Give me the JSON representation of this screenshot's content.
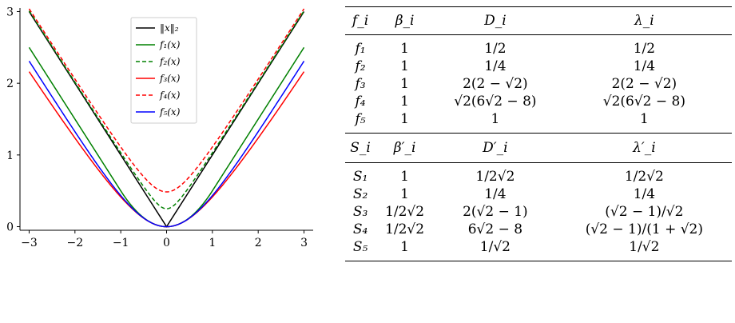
{
  "chart_data": {
    "type": "line",
    "xlim": [
      -3.2,
      3.2
    ],
    "ylim": [
      -0.05,
      3.05
    ],
    "x_ticks": [
      -3,
      -2,
      -1,
      0,
      1,
      2,
      3
    ],
    "y_ticks": [
      0,
      1,
      2,
      3
    ],
    "x_tick_labels": [
      "−3",
      "−2",
      "−1",
      "0",
      "1",
      "2",
      "3"
    ],
    "y_tick_labels": [
      "0",
      "1",
      "2",
      "3"
    ],
    "legend_position": "upper-center",
    "series": [
      {
        "name": "‖x‖₂",
        "color": "#000000",
        "dash": "solid",
        "fn": "abs"
      },
      {
        "name": "f₁(x)",
        "color": "#008000",
        "dash": "solid",
        "fn": "f1"
      },
      {
        "name": "f₂(x)",
        "color": "#008000",
        "dash": "dashed",
        "fn": "f2"
      },
      {
        "name": "f₃(x)",
        "color": "#ff0000",
        "dash": "solid",
        "fn": "f3"
      },
      {
        "name": "f₄(x)",
        "color": "#ff0000",
        "dash": "dashed",
        "fn": "f4"
      },
      {
        "name": "f₅(x)",
        "color": "#0000ff",
        "dash": "solid",
        "fn": "f5"
      }
    ]
  },
  "table": {
    "header1": [
      "f_i",
      "β_i",
      "D_i",
      "λ_i"
    ],
    "rows1": [
      [
        "f₁",
        "1",
        "1/2",
        "1/2"
      ],
      [
        "f₂",
        "1",
        "1/4",
        "1/4"
      ],
      [
        "f₃",
        "1",
        "2(2 − √2)",
        "2(2 − √2)"
      ],
      [
        "f₄",
        "1",
        "√2(6√2 − 8)",
        "√2(6√2 − 8)"
      ],
      [
        "f₅",
        "1",
        "1",
        "1"
      ]
    ],
    "header2": [
      "S_i",
      "β′_i",
      "D′_i",
      "λ′_i"
    ],
    "rows2": [
      [
        "S₁",
        "1",
        "1/2√2",
        "1/2√2"
      ],
      [
        "S₂",
        "1",
        "1/4",
        "1/4"
      ],
      [
        "S₃",
        "1/2√2",
        "2(√2 − 1)",
        "(√2 − 1)/√2"
      ],
      [
        "S₄",
        "1/2√2",
        "6√2 − 8",
        "(√2 − 1)/(1 + √2)"
      ],
      [
        "S₅",
        "1",
        "1/√2",
        "1/√2"
      ]
    ]
  }
}
